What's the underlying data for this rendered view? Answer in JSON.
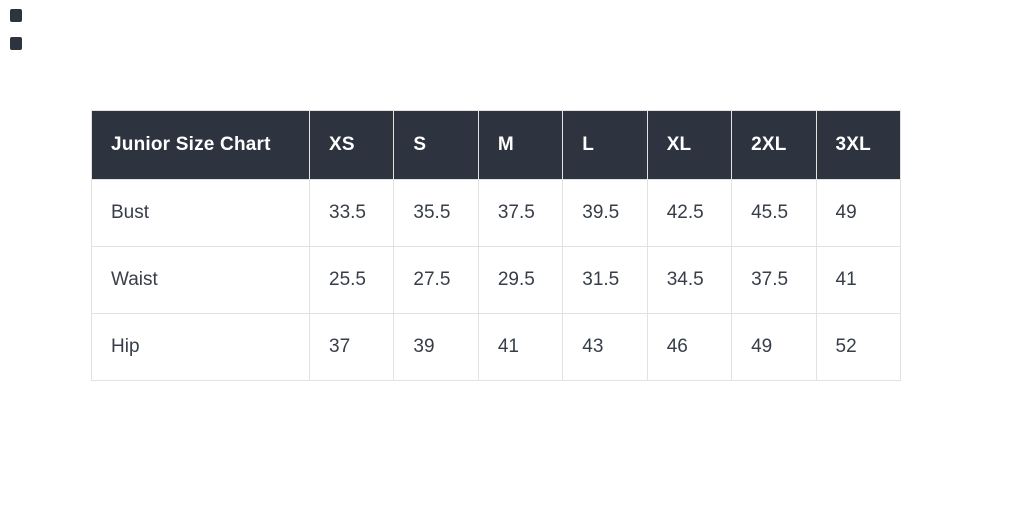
{
  "page": {
    "background": "#ffffff"
  },
  "decorations": {
    "corner_marker_color": "#2d3440"
  },
  "size_chart": {
    "title": "Junior Size Chart",
    "sizes": [
      "XS",
      "S",
      "M",
      "L",
      "XL",
      "2XL",
      "3XL"
    ],
    "rows": [
      {
        "label": "Bust",
        "values": [
          "33.5",
          "35.5",
          "37.5",
          "39.5",
          "42.5",
          "45.5",
          "49"
        ]
      },
      {
        "label": "Waist",
        "values": [
          "25.5",
          "27.5",
          "29.5",
          "31.5",
          "34.5",
          "37.5",
          "41"
        ]
      },
      {
        "label": "Hip",
        "values": [
          "37",
          "39",
          "41",
          "43",
          "46",
          "49",
          "52"
        ]
      }
    ],
    "colors": {
      "header_background": "#2d3440",
      "header_text": "#ffffff",
      "body_text": "#373e48",
      "border": "#e2e2e2"
    }
  },
  "chart_data": {
    "type": "table",
    "title": "Junior Size Chart",
    "columns": [
      "Junior Size Chart",
      "XS",
      "S",
      "M",
      "L",
      "XL",
      "2XL",
      "3XL"
    ],
    "rows": [
      [
        "Bust",
        33.5,
        35.5,
        37.5,
        39.5,
        42.5,
        45.5,
        49
      ],
      [
        "Waist",
        25.5,
        27.5,
        29.5,
        31.5,
        34.5,
        37.5,
        41
      ],
      [
        "Hip",
        37,
        39,
        41,
        43,
        46,
        49,
        52
      ]
    ],
    "layout": {
      "grid": true,
      "header_row_dark": true,
      "first_column_is_row_label": true
    }
  }
}
